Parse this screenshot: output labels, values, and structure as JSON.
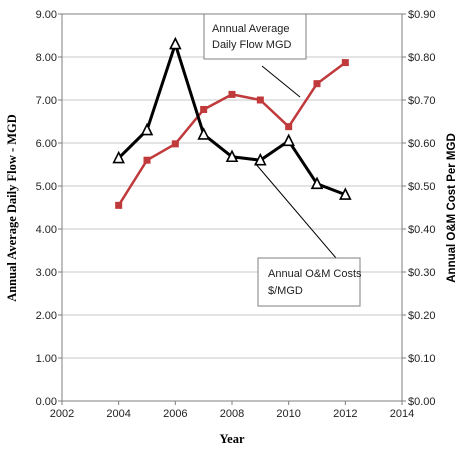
{
  "chart_data": {
    "type": "line",
    "xlabel": "Year",
    "ylabel_left": "Annual Average Daily Flow - MGD",
    "ylabel_right": "Annual O&M Cost Per MGD",
    "x_ticks": [
      "2002",
      "2004",
      "2006",
      "2008",
      "2010",
      "2012",
      "2014"
    ],
    "xlim": [
      2002,
      2014
    ],
    "y_left_ticks": [
      "0.00",
      "1.00",
      "2.00",
      "3.00",
      "4.00",
      "5.00",
      "6.00",
      "7.00",
      "8.00",
      "9.00"
    ],
    "ylim_left": [
      0,
      9
    ],
    "y_right_ticks": [
      "$0.00",
      "$0.10",
      "$0.20",
      "$0.30",
      "$0.40",
      "$0.50",
      "$0.60",
      "$0.70",
      "$0.80",
      "$0.90"
    ],
    "ylim_right": [
      0,
      0.9
    ],
    "grid": true,
    "series": [
      {
        "name": "Annual Average Daily Flow MGD",
        "name_lines": [
          "Annual Average",
          "Daily Flow MGD"
        ],
        "axis": "left",
        "color": "#c0393b",
        "marker": "square",
        "x": [
          2004,
          2005,
          2006,
          2007,
          2008,
          2009,
          2010,
          2011,
          2012
        ],
        "y": [
          4.55,
          5.6,
          5.98,
          6.78,
          7.13,
          7.0,
          6.38,
          7.38,
          7.87
        ]
      },
      {
        "name": "Annual O&M Costs $/MGD",
        "name_lines": [
          "Annual O&M Costs",
          "$/MGD"
        ],
        "axis": "right",
        "color": "#000000",
        "marker": "triangle",
        "x": [
          2004,
          2005,
          2006,
          2007,
          2008,
          2009,
          2010,
          2011,
          2012
        ],
        "y": [
          0.565,
          0.63,
          0.83,
          0.62,
          0.568,
          0.56,
          0.605,
          0.505,
          0.48
        ]
      }
    ]
  }
}
